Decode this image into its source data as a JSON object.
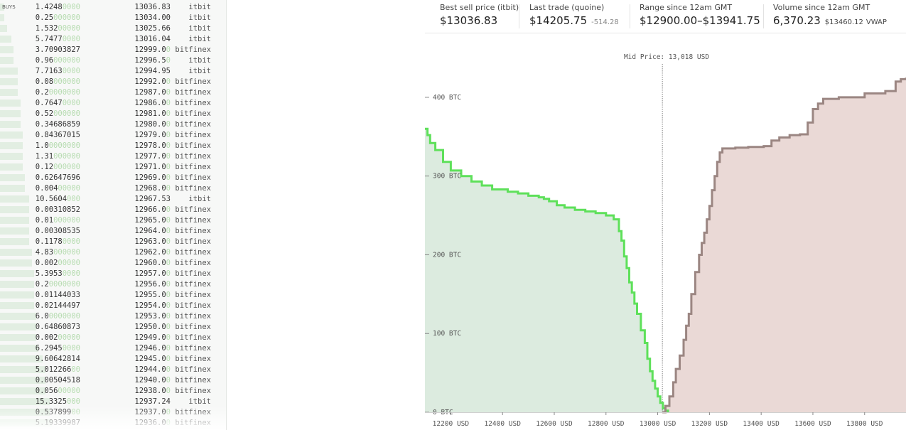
{
  "orderbook": {
    "label": "BUYS",
    "rows": [
      {
        "amount": "1.4248",
        "zeros": "0000",
        "price": "13036.83",
        "exchange": "itbit",
        "depth": 0.02
      },
      {
        "amount": "0.25",
        "zeros": "000000",
        "price": "13034.00",
        "exchange": "itbit",
        "depth": 0.02
      },
      {
        "amount": "1.532",
        "zeros": "00000",
        "price": "13025.66",
        "exchange": "itbit",
        "depth": 0.03
      },
      {
        "amount": "5.7477",
        "zeros": "0000",
        "price": "13016.04",
        "exchange": "itbit",
        "depth": 0.05
      },
      {
        "amount": "3.70903827",
        "zeros": "",
        "price": "12999.0",
        "price_zero": "0",
        "exchange": "bitfinex",
        "depth": 0.06
      },
      {
        "amount": "0.96",
        "zeros": "000000",
        "price": "12996.5",
        "price_zero": "0",
        "exchange": "itbit",
        "depth": 0.06
      },
      {
        "amount": "7.7163",
        "zeros": "0000",
        "price": "12994.95",
        "exchange": "itbit",
        "depth": 0.08
      },
      {
        "amount": "0.08",
        "zeros": "000000",
        "price": "12992.0",
        "price_zero": "0",
        "exchange": "bitfinex",
        "depth": 0.08
      },
      {
        "amount": "0.2",
        "zeros": "0000000",
        "price": "12987.0",
        "price_zero": "0",
        "exchange": "bitfinex",
        "depth": 0.08
      },
      {
        "amount": "0.7647",
        "zeros": "0000",
        "price": "12986.0",
        "price_zero": "0",
        "exchange": "bitfinex",
        "depth": 0.09
      },
      {
        "amount": "0.52",
        "zeros": "000000",
        "price": "12981.0",
        "price_zero": "0",
        "exchange": "bitfinex",
        "depth": 0.09
      },
      {
        "amount": "0.34686859",
        "zeros": "",
        "price": "12980.0",
        "price_zero": "0",
        "exchange": "bitfinex",
        "depth": 0.09
      },
      {
        "amount": "0.84367015",
        "zeros": "",
        "price": "12979.0",
        "price_zero": "0",
        "exchange": "bitfinex",
        "depth": 0.1
      },
      {
        "amount": "1.0",
        "zeros": "0000000",
        "price": "12978.0",
        "price_zero": "0",
        "exchange": "bitfinex",
        "depth": 0.1
      },
      {
        "amount": "1.31",
        "zeros": "000000",
        "price": "12977.0",
        "price_zero": "0",
        "exchange": "bitfinex",
        "depth": 0.1
      },
      {
        "amount": "0.12",
        "zeros": "000000",
        "price": "12971.0",
        "price_zero": "0",
        "exchange": "bitfinex",
        "depth": 0.1
      },
      {
        "amount": "0.62647696",
        "zeros": "",
        "price": "12969.0",
        "price_zero": "0",
        "exchange": "bitfinex",
        "depth": 0.11
      },
      {
        "amount": "0.004",
        "zeros": "00000",
        "price": "12968.0",
        "price_zero": "0",
        "exchange": "bitfinex",
        "depth": 0.11
      },
      {
        "amount": "10.5604",
        "zeros": "000",
        "price": "12967.53",
        "exchange": "itbit",
        "depth": 0.13
      },
      {
        "amount": "0.00310852",
        "zeros": "",
        "price": "12966.0",
        "price_zero": "0",
        "exchange": "bitfinex",
        "depth": 0.13
      },
      {
        "amount": "0.01",
        "zeros": "000000",
        "price": "12965.0",
        "price_zero": "0",
        "exchange": "bitfinex",
        "depth": 0.13
      },
      {
        "amount": "0.00308535",
        "zeros": "",
        "price": "12964.0",
        "price_zero": "0",
        "exchange": "bitfinex",
        "depth": 0.13
      },
      {
        "amount": "0.1178",
        "zeros": "0000",
        "price": "12963.0",
        "price_zero": "0",
        "exchange": "bitfinex",
        "depth": 0.13
      },
      {
        "amount": "4.83",
        "zeros": "000000",
        "price": "12962.0",
        "price_zero": "0",
        "exchange": "bitfinex",
        "depth": 0.14
      },
      {
        "amount": "0.002",
        "zeros": "00000",
        "price": "12960.0",
        "price_zero": "0",
        "exchange": "bitfinex",
        "depth": 0.14
      },
      {
        "amount": "5.3953",
        "zeros": "0000",
        "price": "12957.0",
        "price_zero": "0",
        "exchange": "bitfinex",
        "depth": 0.15
      },
      {
        "amount": "0.2",
        "zeros": "0000000",
        "price": "12956.0",
        "price_zero": "0",
        "exchange": "bitfinex",
        "depth": 0.15
      },
      {
        "amount": "0.01144033",
        "zeros": "",
        "price": "12955.0",
        "price_zero": "0",
        "exchange": "bitfinex",
        "depth": 0.15
      },
      {
        "amount": "0.02144497",
        "zeros": "",
        "price": "12954.0",
        "price_zero": "0",
        "exchange": "bitfinex",
        "depth": 0.15
      },
      {
        "amount": "6.0",
        "zeros": "0000000",
        "price": "12953.0",
        "price_zero": "0",
        "exchange": "bitfinex",
        "depth": 0.16
      },
      {
        "amount": "0.64860873",
        "zeros": "",
        "price": "12950.0",
        "price_zero": "0",
        "exchange": "bitfinex",
        "depth": 0.16
      },
      {
        "amount": "0.002",
        "zeros": "00000",
        "price": "12949.0",
        "price_zero": "0",
        "exchange": "bitfinex",
        "depth": 0.16
      },
      {
        "amount": "6.2945",
        "zeros": "0000",
        "price": "12946.0",
        "price_zero": "0",
        "exchange": "bitfinex",
        "depth": 0.17
      },
      {
        "amount": "9.60642814",
        "zeros": "",
        "price": "12945.0",
        "price_zero": "0",
        "exchange": "bitfinex",
        "depth": 0.19
      },
      {
        "amount": "5.012266",
        "zeros": "00",
        "price": "12944.0",
        "price_zero": "0",
        "exchange": "bitfinex",
        "depth": 0.2
      },
      {
        "amount": "0.00504518",
        "zeros": "",
        "price": "12940.0",
        "price_zero": "0",
        "exchange": "bitfinex",
        "depth": 0.2
      },
      {
        "amount": "0.056",
        "zeros": "00000",
        "price": "12938.0",
        "price_zero": "0",
        "exchange": "bitfinex",
        "depth": 0.2
      },
      {
        "amount": "15.3325",
        "zeros": "000",
        "price": "12937.24",
        "exchange": "itbit",
        "depth": 0.22
      },
      {
        "amount": "0.537899",
        "zeros": "00",
        "price": "12937.0",
        "price_zero": "0",
        "exchange": "bitfinex",
        "depth": 0.22
      },
      {
        "amount": "5.19339987",
        "zeros": "",
        "price": "12936.0",
        "price_zero": "0",
        "exchange": "bitfinex",
        "depth": 0.23
      }
    ]
  },
  "stats": [
    {
      "label": "Best sell price (itbit)",
      "value": "$13036.83",
      "sub": ""
    },
    {
      "label": "Last trade (quoine)",
      "value": "$14205.75",
      "sub": "-514.28"
    },
    {
      "label": "Range since 12am GMT",
      "value": "$12900.00–$13941.75",
      "sub": ""
    },
    {
      "label": "Volume since 12am GMT",
      "value": "6,370.23",
      "sub": "$13460.12",
      "sub2": "VWAP"
    }
  ],
  "chart_data": {
    "type": "area",
    "title": "",
    "mid_price_label": "Mid Price: 13,018 USD",
    "mid_price": 13018,
    "xlim": [
      12100,
      13960
    ],
    "ylim": [
      0,
      455
    ],
    "x_ticks": [
      12200,
      12400,
      12600,
      12800,
      13000,
      13200,
      13400,
      13600,
      13800
    ],
    "x_tick_labels": [
      "12200 USD",
      "12400 USD",
      "12600 USD",
      "12800 USD",
      "13000 USD",
      "13200 USD",
      "13400 USD",
      "13600 USD",
      "13800 USD"
    ],
    "y_ticks": [
      0,
      100,
      200,
      300,
      400
    ],
    "y_tick_labels": [
      "0 BTC",
      "100 BTC",
      "200 BTC",
      "300 BTC",
      "400 BTC"
    ],
    "bid_color": "#5ee05a",
    "bid_fill": "#dcebdf",
    "ask_color": "#9b8682",
    "ask_fill": "#ead9d6",
    "series": [
      {
        "name": "bids",
        "points": [
          [
            12100,
            360
          ],
          [
            12110,
            352
          ],
          [
            12120,
            342
          ],
          [
            12140,
            333
          ],
          [
            12170,
            318
          ],
          [
            12200,
            307
          ],
          [
            12240,
            300
          ],
          [
            12280,
            293
          ],
          [
            12320,
            288
          ],
          [
            12360,
            283
          ],
          [
            12420,
            280
          ],
          [
            12460,
            278
          ],
          [
            12500,
            275
          ],
          [
            12540,
            273
          ],
          [
            12560,
            271
          ],
          [
            12580,
            268
          ],
          [
            12610,
            263
          ],
          [
            12640,
            260
          ],
          [
            12680,
            257
          ],
          [
            12720,
            255
          ],
          [
            12760,
            253
          ],
          [
            12800,
            250
          ],
          [
            12830,
            245
          ],
          [
            12850,
            230
          ],
          [
            12860,
            218
          ],
          [
            12870,
            198
          ],
          [
            12880,
            183
          ],
          [
            12890,
            165
          ],
          [
            12900,
            152
          ],
          [
            12910,
            138
          ],
          [
            12920,
            125
          ],
          [
            12935,
            104
          ],
          [
            12950,
            88
          ],
          [
            12960,
            68
          ],
          [
            12970,
            52
          ],
          [
            12980,
            40
          ],
          [
            12990,
            30
          ],
          [
            13000,
            20
          ],
          [
            13010,
            12
          ],
          [
            13020,
            5
          ],
          [
            13030,
            2
          ],
          [
            13040,
            0
          ]
        ]
      },
      {
        "name": "asks",
        "points": [
          [
            13018,
            0
          ],
          [
            13030,
            8
          ],
          [
            13045,
            20
          ],
          [
            13060,
            38
          ],
          [
            13070,
            55
          ],
          [
            13085,
            72
          ],
          [
            13100,
            92
          ],
          [
            13110,
            110
          ],
          [
            13120,
            125
          ],
          [
            13130,
            150
          ],
          [
            13145,
            178
          ],
          [
            13160,
            200
          ],
          [
            13170,
            215
          ],
          [
            13180,
            228
          ],
          [
            13190,
            245
          ],
          [
            13200,
            262
          ],
          [
            13210,
            282
          ],
          [
            13220,
            300
          ],
          [
            13230,
            318
          ],
          [
            13240,
            330
          ],
          [
            13250,
            335
          ],
          [
            13300,
            336
          ],
          [
            13350,
            337
          ],
          [
            13410,
            338
          ],
          [
            13440,
            345
          ],
          [
            13470,
            349
          ],
          [
            13510,
            352
          ],
          [
            13550,
            353
          ],
          [
            13580,
            368
          ],
          [
            13600,
            385
          ],
          [
            13620,
            392
          ],
          [
            13640,
            398
          ],
          [
            13700,
            400
          ],
          [
            13800,
            405
          ],
          [
            13880,
            408
          ],
          [
            13920,
            420
          ],
          [
            13940,
            423
          ],
          [
            13960,
            425
          ]
        ]
      }
    ]
  }
}
